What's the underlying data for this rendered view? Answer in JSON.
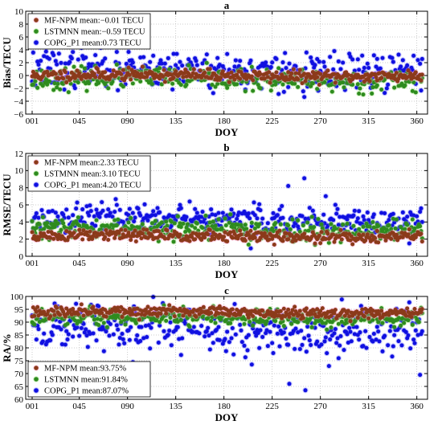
{
  "chart_data": [
    {
      "type": "scatter",
      "panel": "a",
      "xlabel": "DOY",
      "ylabel": "Bias/TECU",
      "xlim": [
        -5,
        370
      ],
      "ylim": [
        -6,
        10
      ],
      "xticks": [
        "001",
        "045",
        "090",
        "135",
        "180",
        "225",
        "270",
        "315",
        "360"
      ],
      "xtick_values": [
        1,
        45,
        90,
        135,
        180,
        225,
        270,
        315,
        360
      ],
      "yticks": [
        -6,
        -4,
        -2,
        0,
        2,
        4,
        6,
        8,
        10
      ],
      "legend_position": "top-left",
      "series": [
        {
          "name": "MF-NPM",
          "legend": "MF-NPM mean:−0.01 TECU",
          "color": "#8B3A1A",
          "halo": "#ff99cc",
          "mean": -0.01,
          "spread": 0.45,
          "seed": 11
        },
        {
          "name": "LSTMNN",
          "legend": "LSTMNN mean:−0.59 TECU",
          "color": "#2E8B1E",
          "halo": "#8fe06b",
          "mean": -0.59,
          "spread": 0.8,
          "seed": 23
        },
        {
          "name": "COPG_P1",
          "legend": "COPG_P1 mean:0.73 TECU",
          "color": "#1010E0",
          "halo": "#6060ff",
          "mean": 0.73,
          "spread": 1.5,
          "seed": 37
        }
      ]
    },
    {
      "type": "scatter",
      "panel": "b",
      "xlabel": "DOY",
      "ylabel": "RMSE/TECU",
      "xlim": [
        -5,
        370
      ],
      "ylim": [
        0,
        12
      ],
      "xticks": [
        "001",
        "045",
        "090",
        "135",
        "180",
        "225",
        "270",
        "315",
        "360"
      ],
      "xtick_values": [
        1,
        45,
        90,
        135,
        180,
        225,
        270,
        315,
        360
      ],
      "yticks": [
        0,
        2,
        4,
        6,
        8,
        10,
        12
      ],
      "legend_position": "top-left",
      "series": [
        {
          "name": "MF-NPM",
          "legend": "MF-NPM mean:2.33 TECU",
          "color": "#8B3A1A",
          "halo": "#ff99cc",
          "mean": 2.33,
          "spread": 0.35,
          "seed": 51
        },
        {
          "name": "LSTMNN",
          "legend": "LSTMNN mean:3.10 TECU",
          "color": "#2E8B1E",
          "halo": "#8fe06b",
          "mean": 3.1,
          "spread": 0.6,
          "seed": 63
        },
        {
          "name": "COPG_P1",
          "legend": "COPG_P1 mean:4.20 TECU",
          "color": "#1010E0",
          "halo": "#6060ff",
          "mean": 4.2,
          "spread": 0.9,
          "seed": 77
        }
      ],
      "outliers": [
        {
          "series": "COPG_P1",
          "x": 240,
          "y": 8.2
        },
        {
          "series": "COPG_P1",
          "x": 255,
          "y": 9.1
        }
      ]
    },
    {
      "type": "scatter",
      "panel": "c",
      "xlabel": "DOY",
      "ylabel": "RA/%",
      "xlim": [
        -5,
        370
      ],
      "ylim": [
        60,
        100
      ],
      "xticks": [
        "001",
        "045",
        "090",
        "135",
        "180",
        "225",
        "270",
        "315",
        "360"
      ],
      "xtick_values": [
        1,
        45,
        90,
        135,
        180,
        225,
        270,
        315,
        360
      ],
      "yticks": [
        60,
        65,
        70,
        75,
        80,
        85,
        90,
        95,
        100
      ],
      "legend_position": "bottom-left",
      "series": [
        {
          "name": "MF-NPM",
          "legend": "MF-NPM mean:93.75%",
          "color": "#8B3A1A",
          "halo": "#ff99cc",
          "mean": 93.75,
          "spread": 1.0,
          "seed": 91
        },
        {
          "name": "LSTMNN",
          "legend": "LSTMNN mean:91.84%",
          "color": "#2E8B1E",
          "halo": "#8fe06b",
          "mean": 91.84,
          "spread": 1.6,
          "seed": 103
        },
        {
          "name": "COPG_P1",
          "legend": "COPG_P1 mean:87.07%",
          "color": "#1010E0",
          "halo": "#6060ff",
          "mean": 87.07,
          "spread": 4.5,
          "seed": 117
        }
      ],
      "outliers": [
        {
          "series": "COPG_P1",
          "x": 241,
          "y": 66
        },
        {
          "series": "COPG_P1",
          "x": 256,
          "y": 63.5
        },
        {
          "series": "COPG_P1",
          "x": 363,
          "y": 69.5
        }
      ]
    }
  ]
}
